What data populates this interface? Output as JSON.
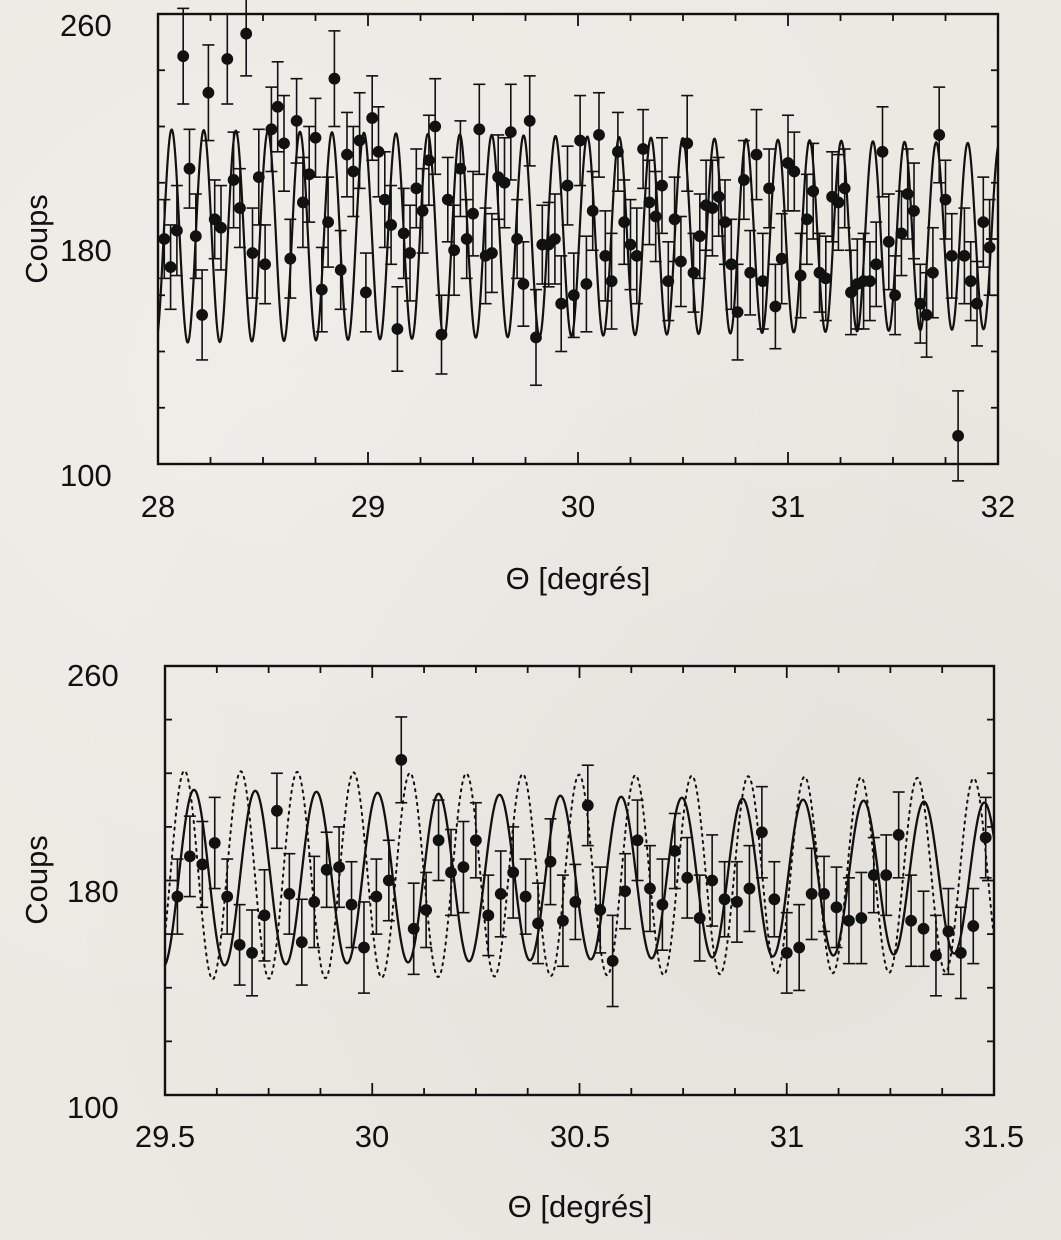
{
  "chart_data": [
    {
      "type": "scatter",
      "title": "",
      "xlabel": "Θ  [degrés]",
      "ylabel": "Coups",
      "xlim": [
        28,
        32
      ],
      "ylim": [
        100,
        260
      ],
      "x_ticks": [
        "28",
        "29",
        "30",
        "31",
        "32"
      ],
      "y_ticks": [
        "100",
        "180",
        "260"
      ],
      "grid": false,
      "legend": "none",
      "series": [
        {
          "type": "scatter_with_errorbars",
          "x": [
            28.03,
            28.06,
            28.09,
            28.12,
            28.15,
            28.18,
            28.21,
            28.24,
            28.27,
            28.3,
            28.33,
            28.36,
            28.39,
            28.42,
            28.45,
            28.48,
            28.51,
            28.54,
            28.57,
            28.6,
            28.63,
            28.66,
            28.69,
            28.72,
            28.75,
            28.78,
            28.81,
            28.84,
            28.87,
            28.9,
            28.93,
            28.96,
            28.99,
            29.02,
            29.05,
            29.08,
            29.11,
            29.14,
            29.17,
            29.2,
            29.23,
            29.26,
            29.29,
            29.32,
            29.35,
            29.38,
            29.41,
            29.44,
            29.47,
            29.5,
            29.53,
            29.56,
            29.59,
            29.62,
            29.65,
            29.68,
            29.71,
            29.74,
            29.77,
            29.8,
            29.83,
            29.86,
            29.89,
            29.92,
            29.95,
            29.98,
            30.01,
            30.04,
            30.07,
            30.1,
            30.13,
            30.16,
            30.19,
            30.22,
            30.25,
            30.28,
            30.31,
            30.34,
            30.37,
            30.4,
            30.43,
            30.46,
            30.49,
            30.52,
            30.55,
            30.58,
            30.61,
            30.64,
            30.67,
            30.7,
            30.73,
            30.76,
            30.79,
            30.82,
            30.85,
            30.88,
            30.91,
            30.94,
            30.97,
            31.0,
            31.03,
            31.06,
            31.09,
            31.12,
            31.15,
            31.18,
            31.21,
            31.24,
            31.27,
            31.3,
            31.33,
            31.36,
            31.39,
            31.42,
            31.45,
            31.48,
            31.51,
            31.54,
            31.57,
            31.6,
            31.63,
            31.66,
            31.69,
            31.72,
            31.75,
            31.78,
            31.81,
            31.84,
            31.87,
            31.9,
            31.93,
            31.96
          ],
          "y": [
            180,
            170,
            183,
            245,
            205,
            181,
            153,
            232,
            187,
            184,
            244,
            201,
            191,
            253,
            175,
            202,
            171,
            219,
            227,
            214,
            173,
            222,
            193,
            203,
            216,
            162,
            186,
            237,
            169,
            210,
            204,
            215,
            161,
            223,
            211,
            194,
            185,
            148,
            182,
            175,
            198,
            190,
            208,
            220,
            146,
            194,
            176,
            205,
            180,
            189,
            219,
            174,
            175,
            202,
            200,
            218,
            180,
            164,
            222,
            145,
            178,
            178,
            180,
            157,
            199,
            160,
            215,
            164,
            190,
            217,
            174,
            165,
            211,
            186,
            178,
            174,
            212,
            193,
            188,
            199,
            165,
            187,
            172,
            214,
            168,
            181,
            192,
            191,
            195,
            186,
            171,
            154,
            201,
            168,
            210,
            165,
            198,
            156,
            173,
            207,
            204,
            167,
            187,
            197,
            168,
            166,
            195,
            193,
            198,
            161,
            164,
            165,
            165,
            171,
            211,
            179,
            160,
            182,
            196,
            190,
            157,
            153,
            168,
            217,
            194,
            174,
            110,
            174,
            165,
            157,
            186,
            177
          ]
        },
        {
          "type": "fit_line",
          "style": "solid"
        }
      ]
    },
    {
      "type": "scatter",
      "title": "",
      "xlabel": "Θ  [degrés]",
      "ylabel": "Coups",
      "xlim": [
        29.5,
        31.5
      ],
      "ylim": [
        100,
        260
      ],
      "x_ticks": [
        "29.5",
        "30",
        "30.5",
        "31",
        "31.5"
      ],
      "y_ticks": [
        "100",
        "180",
        "260"
      ],
      "grid": false,
      "legend": "none",
      "series": [
        {
          "type": "scatter_with_errorbars",
          "x": [
            29.53,
            29.56,
            29.59,
            29.62,
            29.65,
            29.68,
            29.71,
            29.74,
            29.77,
            29.8,
            29.83,
            29.86,
            29.89,
            29.92,
            29.95,
            29.98,
            30.01,
            30.04,
            30.07,
            30.1,
            30.13,
            30.16,
            30.19,
            30.22,
            30.25,
            30.28,
            30.31,
            30.34,
            30.37,
            30.4,
            30.43,
            30.46,
            30.49,
            30.52,
            30.55,
            30.58,
            30.61,
            30.64,
            30.67,
            30.7,
            30.73,
            30.76,
            30.79,
            30.82,
            30.85,
            30.88,
            30.91,
            30.94,
            30.97,
            31.0,
            31.03,
            31.06,
            31.09,
            31.12,
            31.15,
            31.18,
            31.21,
            31.24,
            31.27,
            31.3,
            31.33,
            31.36,
            31.39,
            31.42,
            31.45,
            31.48
          ],
          "y": [
            174,
            189,
            186,
            194,
            174,
            156,
            153,
            167,
            206,
            175,
            157,
            172,
            184,
            185,
            171,
            155,
            174,
            180,
            225,
            162,
            169,
            195,
            183,
            185,
            195,
            167,
            175,
            183,
            174,
            164,
            187,
            165,
            172,
            208,
            169,
            150,
            176,
            195,
            177,
            171,
            191,
            181,
            166,
            180,
            173,
            172,
            177,
            198,
            173,
            153,
            155,
            175,
            175,
            170,
            165,
            166,
            182,
            182,
            197,
            165,
            162,
            152,
            161,
            153,
            163,
            196
          ]
        },
        {
          "type": "fit_line",
          "style": "solid"
        },
        {
          "type": "fit_line",
          "style": "dotted"
        }
      ]
    }
  ]
}
